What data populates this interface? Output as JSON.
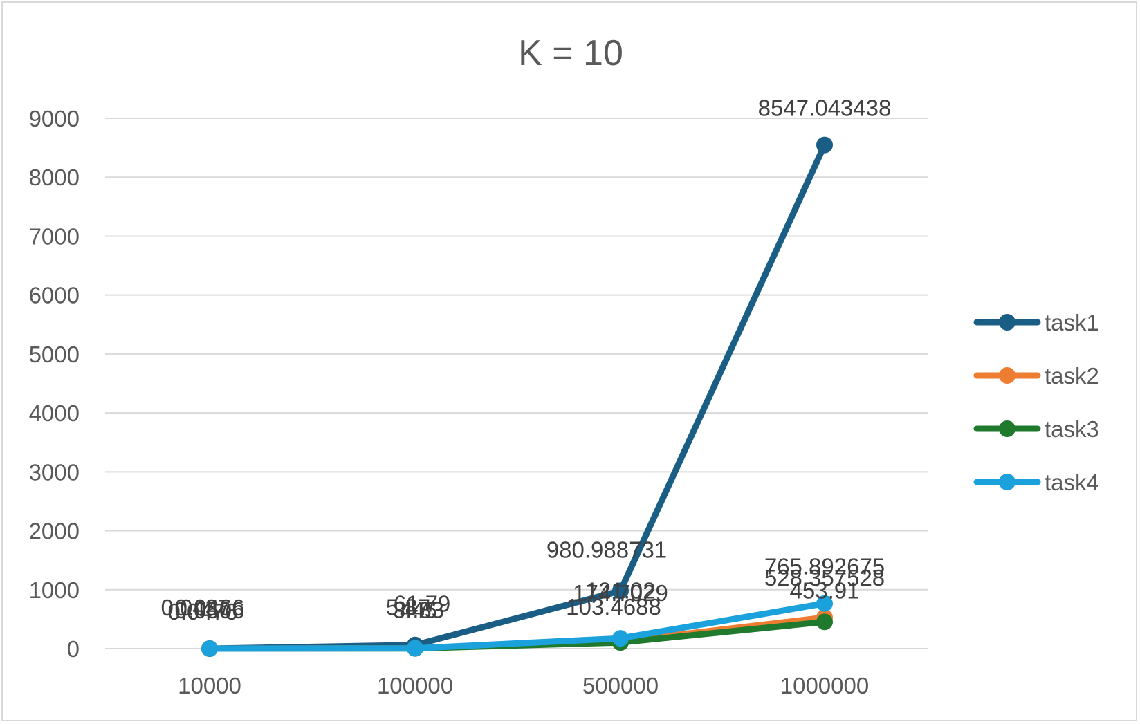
{
  "chart_data": {
    "type": "line",
    "title": "K = 10",
    "xlabel": "",
    "ylabel": "",
    "categories": [
      "10000",
      "100000",
      "500000",
      "1000000"
    ],
    "ylim": [
      0,
      9000
    ],
    "yticks": [
      0,
      1000,
      2000,
      3000,
      4000,
      5000,
      6000,
      7000,
      8000,
      9000
    ],
    "grid": true,
    "legend_position": "right",
    "series": [
      {
        "name": "task1",
        "color": "#1b5e85",
        "values": [
          0.0437,
          61.79,
          980.988731,
          8547.043438
        ],
        "labels": [
          "0.0437",
          "61.79",
          "980.988731",
          "8547.043438"
        ]
      },
      {
        "name": "task2",
        "color": "#ed7d31",
        "values": [
          0.0466,
          5.87,
          121.02,
          528.357528
        ],
        "labels": [
          "0.0466",
          "5.87",
          "121.02",
          "528.357528"
        ]
      },
      {
        "name": "task3",
        "color": "#1f7a2d",
        "values": [
          0.0506,
          3.45,
          103.4688,
          453.91
        ],
        "labels": [
          "0.0506",
          "3.45",
          "103.4688",
          "453.91"
        ]
      },
      {
        "name": "task4",
        "color": "#1ba1dc",
        "values": [
          0.0476,
          4.83,
          174.7029,
          765.892675
        ],
        "labels": [
          "0.0476",
          "4.83",
          "174.7029",
          "765.892675"
        ]
      }
    ]
  }
}
